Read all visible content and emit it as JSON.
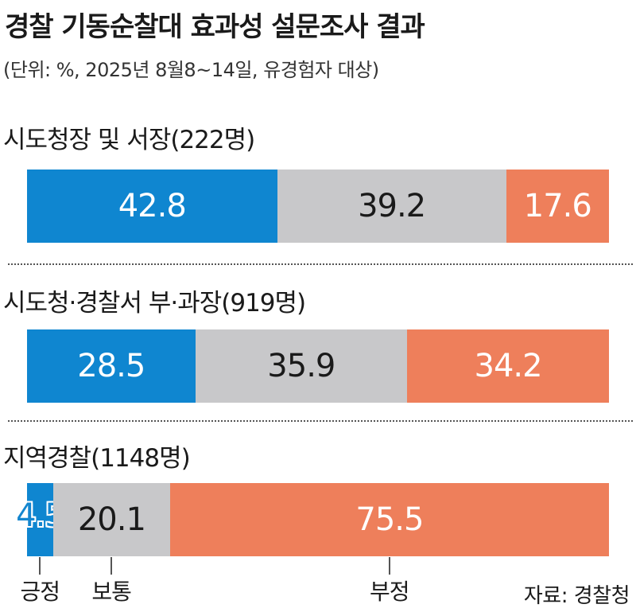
{
  "title": "경찰 기동순찰대 효과성 설문조사 결과",
  "subtitle": "(단위: %, 2025년 8월8~14일, 유경험자 대상)",
  "colors": {
    "positive": "#0f86d0",
    "neutral": "#c8c8ca",
    "negative": "#ee7f5b"
  },
  "chart_data": {
    "type": "bar",
    "orientation": "horizontal-stacked-100",
    "categories": [
      "시도청장 및 서장(222명)",
      "시도청·경찰서 부·과장(919명)",
      "지역경찰(1148명)"
    ],
    "groups": [
      {
        "name": "시도청장 및 서장",
        "count": "(222명)"
      },
      {
        "name": "시도청·경찰서 부·과장",
        "count": "(919명)"
      },
      {
        "name": "지역경찰",
        "count": "(1148명)"
      }
    ],
    "series": [
      {
        "name": "긍정",
        "values": [
          42.8,
          28.5,
          4.5
        ],
        "labels": [
          "42.8",
          "28.5",
          "4.5"
        ]
      },
      {
        "name": "보통",
        "values": [
          39.2,
          35.9,
          20.1
        ],
        "labels": [
          "39.2",
          "35.9",
          "20.1"
        ]
      },
      {
        "name": "부정",
        "values": [
          17.6,
          34.2,
          75.5
        ],
        "labels": [
          "17.6",
          "34.2",
          "75.5"
        ]
      }
    ],
    "legend": {
      "position": "bottom",
      "entries": [
        "긍정",
        "보통",
        "부정"
      ]
    }
  },
  "source": "자료: 경찰청"
}
